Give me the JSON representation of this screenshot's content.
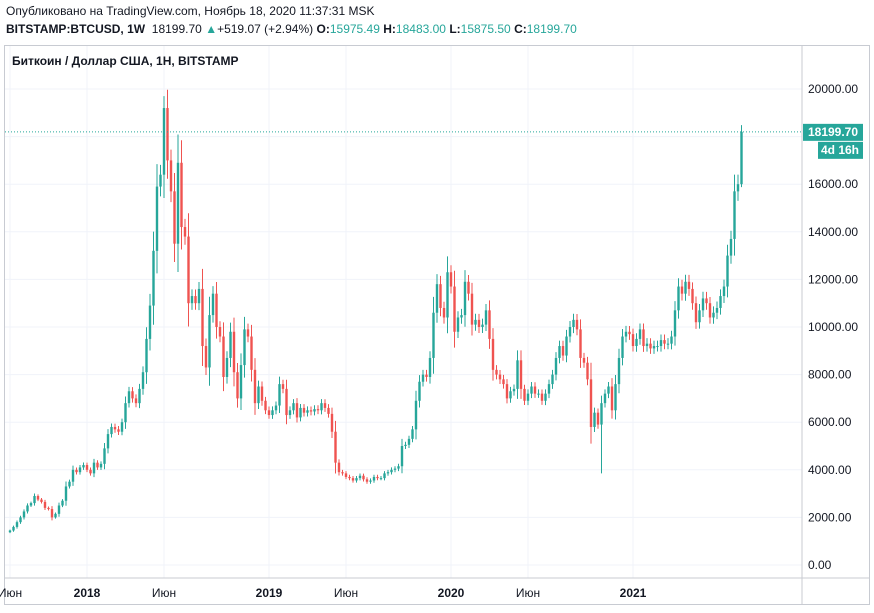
{
  "header": {
    "published": "Опубликовано на TradingView.com, Ноябрь 18, 2020 11:37:31 MSK",
    "symbol": "BITSTAMP:BTCUSD, 1W",
    "last": "18199.70",
    "change_arrow": "▲",
    "change": "+519.07 (+2.94%)",
    "o_label": "O:",
    "o_value": "15975.49",
    "h_label": "H:",
    "h_value": "18483.00",
    "l_label": "L:",
    "l_value": "15875.50",
    "c_label": "C:",
    "c_value": "18199.70"
  },
  "legend": {
    "title": "Биткоин / Доллар США, 1Н, BITSTAMP"
  },
  "price_label": {
    "value": "18199.70",
    "countdown": "4d 16h"
  },
  "colors": {
    "up": "#26a69a",
    "down": "#ef5350",
    "frame": "#c8cbd2"
  },
  "chart_data": {
    "type": "candlestick",
    "title": "Биткоин / Доллар США, 1Н, BITSTAMP",
    "ylim": [
      0,
      21000
    ],
    "yticks": [
      0,
      2000,
      4000,
      6000,
      8000,
      10000,
      12000,
      14000,
      16000,
      18000,
      20000
    ],
    "ytick_labels": [
      "0.00",
      "2000.00",
      "4000.00",
      "6000.00",
      "8000.00",
      "10000.00",
      "12000.00",
      "14000.00",
      "16000.00",
      "18000.00",
      "20000.00"
    ],
    "xticks": [
      {
        "label": "Июн",
        "week": 0,
        "bold": false
      },
      {
        "label": "2018",
        "week": 22,
        "bold": true
      },
      {
        "label": "Июн",
        "week": 44,
        "bold": false
      },
      {
        "label": "2019",
        "week": 74,
        "bold": true
      },
      {
        "label": "Июн",
        "week": 96,
        "bold": false
      },
      {
        "label": "2020",
        "week": 126,
        "bold": true
      },
      {
        "label": "Июн",
        "week": 148,
        "bold": false
      },
      {
        "label": "2021",
        "week": 178,
        "bold": true
      }
    ],
    "last_price": 18199.7,
    "last_high": 18483.0,
    "weekly_close": [
      1450,
      1600,
      1800,
      2000,
      2250,
      2500,
      2600,
      2900,
      2750,
      2650,
      2400,
      2350,
      2000,
      2150,
      2500,
      2700,
      3300,
      3500,
      4000,
      3900,
      4100,
      4200,
      4000,
      3850,
      4300,
      4100,
      4250,
      4900,
      5500,
      5800,
      5700,
      5600,
      6000,
      6800,
      7300,
      7000,
      6800,
      7400,
      8100,
      9500,
      10900,
      13200,
      15900,
      16400,
      19200,
      17000,
      15700,
      13500,
      16900,
      14200,
      13800,
      11000,
      11300,
      11000,
      11600,
      9200,
      8300,
      10500,
      11400,
      10000,
      9600,
      7900,
      8700,
      9800,
      8100,
      7000,
      8400,
      9900,
      9600,
      8200,
      6800,
      7500,
      6900,
      6500,
      6300,
      6500,
      6700,
      7600,
      7400,
      6300,
      6500,
      6800,
      6200,
      6600,
      6400,
      6500,
      6450,
      6550,
      6500,
      6800,
      6600,
      6350,
      5600,
      4300,
      3900,
      3850,
      3700,
      3650,
      3550,
      3650,
      3750,
      3600,
      3500,
      3550,
      3700,
      3650,
      3650,
      3850,
      3900,
      4000,
      4050,
      4150,
      5000,
      5050,
      5300,
      5700,
      6900,
      7700,
      8000,
      7900,
      8700,
      10600,
      11800,
      10800,
      10400,
      12300,
      11700,
      9800,
      10400,
      10500,
      11900,
      11400,
      10100,
      10300,
      10000,
      10100,
      10700,
      9500,
      8200,
      8000,
      7800,
      7600,
      7000,
      7300,
      7400,
      8600,
      7400,
      6900,
      7200,
      7500,
      7200,
      7200,
      6900,
      7200,
      7600,
      8000,
      8700,
      9200,
      8800,
      9600,
      10000,
      10300,
      9900,
      8700,
      8500,
      7800,
      5800,
      6400,
      5900,
      6800,
      7200,
      7500,
      6500,
      7600,
      8700,
      9600,
      9800,
      9700,
      9200,
      9500,
      9900,
      9200,
      9300,
      9100,
      9200,
      9200,
      9450,
      9300,
      9300,
      9600,
      10700,
      11700,
      11400,
      11900,
      11600,
      11000,
      10200,
      10700,
      11200,
      11000,
      10400,
      10600,
      10800,
      11300,
      11700,
      13000,
      13700,
      15700,
      16000,
      18199.7
    ]
  }
}
